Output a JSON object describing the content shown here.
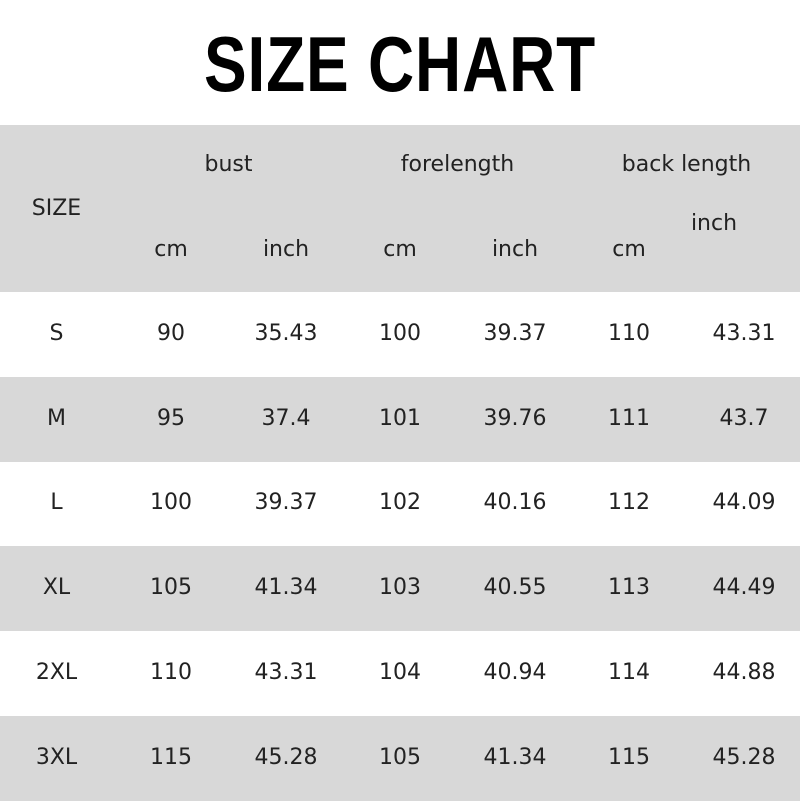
{
  "title": "SIZE CHART",
  "header": {
    "size": "SIZE",
    "groups": [
      "bust",
      "forelength",
      "back length"
    ],
    "units": [
      "cm",
      "inch",
      "cm",
      "inch",
      "cm",
      "inch"
    ]
  },
  "rows": [
    [
      "S",
      "90",
      "35.43",
      "100",
      "39.37",
      "110",
      "43.31"
    ],
    [
      "M",
      "95",
      "37.4",
      "101",
      "39.76",
      "111",
      "43.7"
    ],
    [
      "L",
      "100",
      "39.37",
      "102",
      "40.16",
      "112",
      "44.09"
    ],
    [
      "XL",
      "105",
      "41.34",
      "103",
      "40.55",
      "113",
      "44.49"
    ],
    [
      "2XL",
      "110",
      "43.31",
      "104",
      "40.94",
      "114",
      "44.88"
    ],
    [
      "3XL",
      "115",
      "45.28",
      "105",
      "41.34",
      "115",
      "45.28"
    ]
  ],
  "colors": {
    "stripe": "#d8d8d8",
    "text": "#222222",
    "title": "#000000"
  }
}
